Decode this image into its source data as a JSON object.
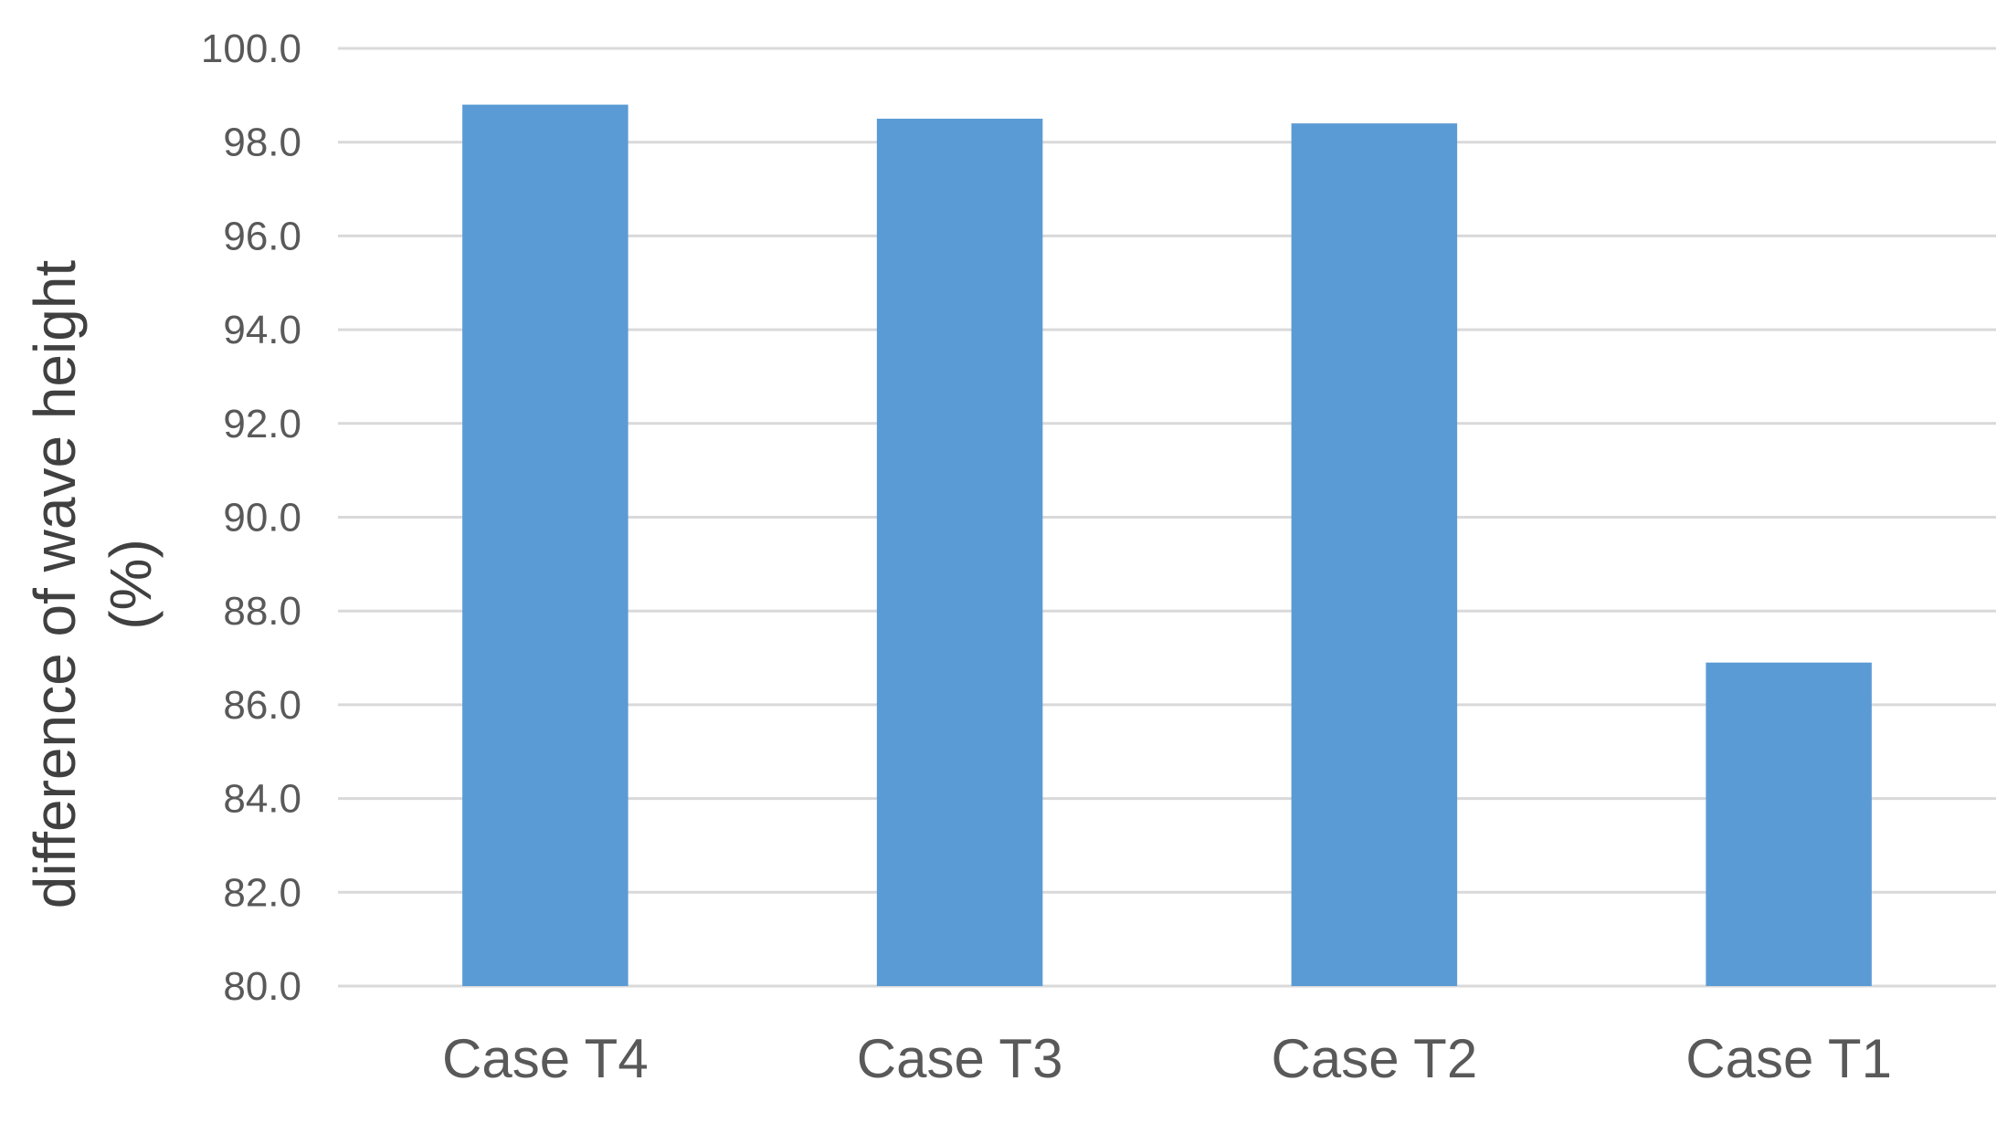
{
  "chart_data": {
    "type": "bar",
    "categories": [
      "Case T4",
      "Case T3",
      "Case T2",
      "Case T1"
    ],
    "series": [
      {
        "values": [
          98.8,
          98.5,
          98.4,
          86.9
        ],
        "color": "#5b9bd5"
      }
    ],
    "xlabel": "",
    "ylabel_lines": [
      "difference of wave height",
      "(%)"
    ],
    "ylim": [
      80.0,
      100.0
    ],
    "yticks": [
      "80.0",
      "82.0",
      "84.0",
      "86.0",
      "88.0",
      "90.0",
      "92.0",
      "94.0",
      "96.0",
      "98.0",
      "100.0"
    ],
    "grid": true,
    "legend": "none",
    "gridline_color": "#d9d9d9",
    "text_color": "#595959"
  }
}
